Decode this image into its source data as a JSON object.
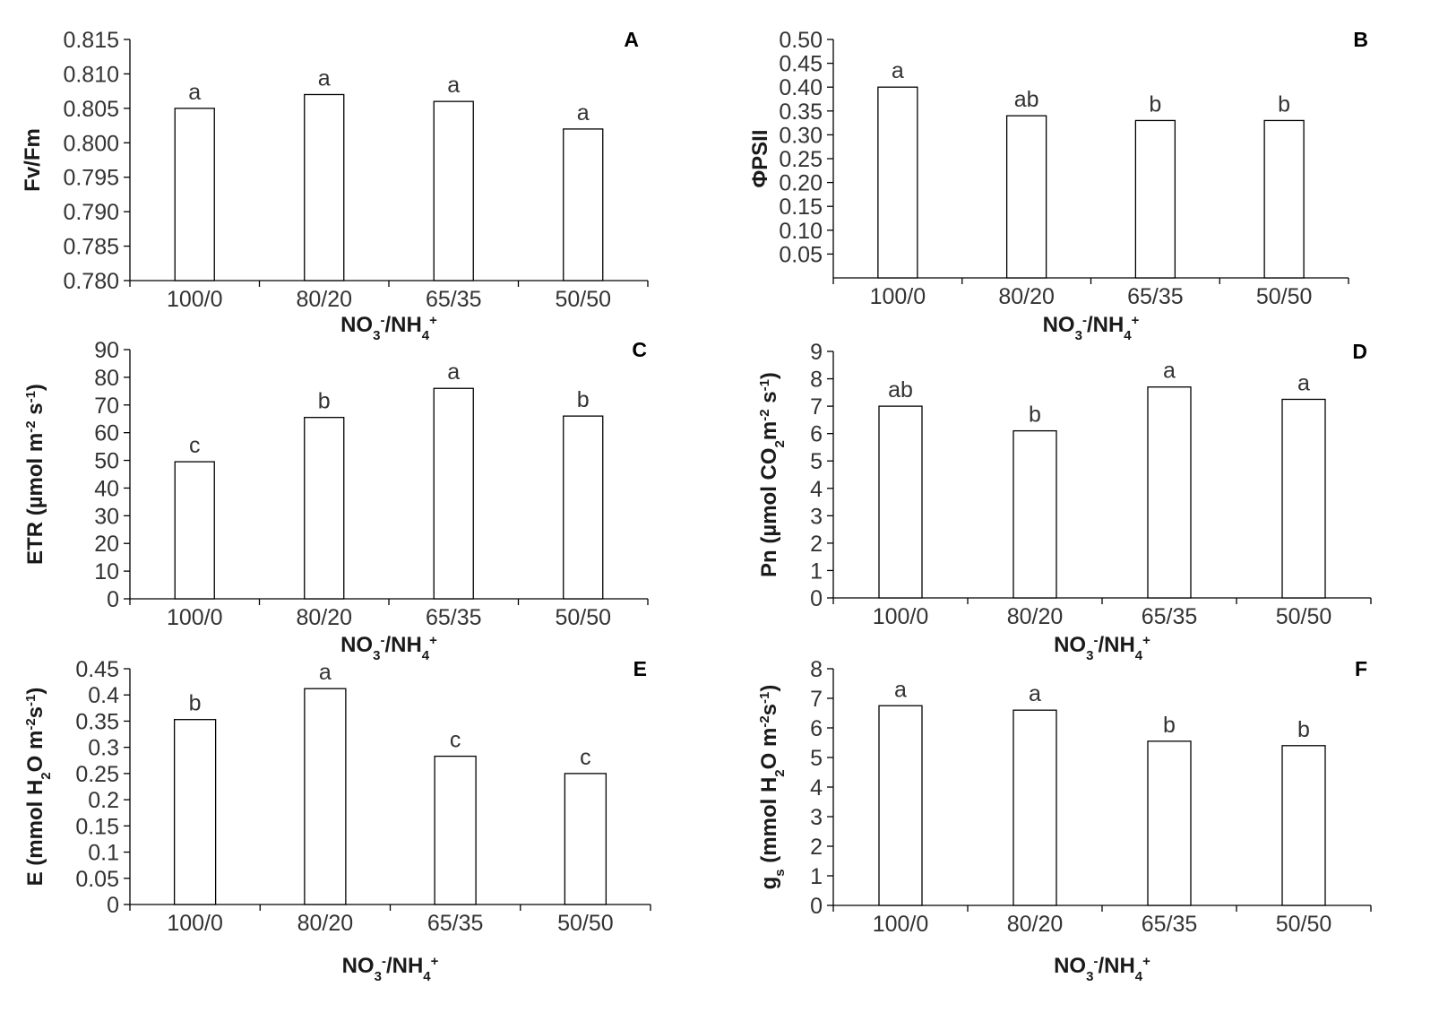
{
  "chart_data": [
    {
      "panel": "A",
      "type": "bar",
      "categories": [
        "100/0",
        "80/20",
        "65/35",
        "50/50"
      ],
      "values": [
        0.805,
        0.807,
        0.806,
        0.802
      ],
      "letters": [
        "a",
        "a",
        "a",
        "a"
      ],
      "ylabel": [
        "Fv/Fm"
      ],
      "xlabel": "NO3-/NH4+",
      "ylim": [
        0.78,
        0.815
      ],
      "yticks": [
        0.78,
        0.785,
        0.79,
        0.795,
        0.8,
        0.805,
        0.81,
        0.815
      ],
      "yticklabels": [
        "0.780",
        "0.785",
        "0.790",
        "0.795",
        "0.800",
        "0.805",
        "0.810",
        "0.815"
      ]
    },
    {
      "panel": "B",
      "type": "bar",
      "categories": [
        "100/0",
        "80/20",
        "65/35",
        "50/50"
      ],
      "values": [
        0.4,
        0.34,
        0.33,
        0.33
      ],
      "letters": [
        "a",
        "ab",
        "b",
        "b"
      ],
      "ylabel": [
        "ΦPSII"
      ],
      "xlabel": "NO3-/NH4+",
      "ylim": [
        0,
        0.5
      ],
      "yticks": [
        0.05,
        0.1,
        0.15,
        0.2,
        0.25,
        0.3,
        0.35,
        0.4,
        0.45,
        0.5
      ],
      "yticklabels": [
        "0.05",
        "0.10",
        "0.15",
        "0.20",
        "0.25",
        "0.30",
        "0.35",
        "0.40",
        "0.45",
        "0.50"
      ]
    },
    {
      "panel": "C",
      "type": "bar",
      "categories": [
        "100/0",
        "80/20",
        "65/35",
        "50/50"
      ],
      "values": [
        49.5,
        65.5,
        76,
        66
      ],
      "letters": [
        "c",
        "b",
        "a",
        "b"
      ],
      "ylabel": [
        "ETR (µmol m",
        "-2",
        " s",
        "-1",
        ")"
      ],
      "xlabel": "NO3-/NH4+",
      "ylim": [
        0,
        90
      ],
      "yticks": [
        0,
        10,
        20,
        30,
        40,
        50,
        60,
        70,
        80,
        90
      ],
      "yticklabels": [
        "0",
        "10",
        "20",
        "30",
        "40",
        "50",
        "60",
        "70",
        "80",
        "90"
      ]
    },
    {
      "panel": "D",
      "type": "bar",
      "categories": [
        "100/0",
        "80/20",
        "65/35",
        "50/50"
      ],
      "values": [
        7.0,
        6.1,
        7.7,
        7.25
      ],
      "letters": [
        "ab",
        "b",
        "a",
        "a"
      ],
      "ylabel": [
        "Pn (µmol CO",
        "2",
        "m",
        "-2",
        " s",
        "-1",
        ")"
      ],
      "xlabel": "NO3-/NH4+",
      "ylim": [
        0,
        9
      ],
      "yticks": [
        0,
        1,
        2,
        3,
        4,
        5,
        6,
        7,
        8,
        9
      ],
      "yticklabels": [
        "0",
        "1",
        "2",
        "3",
        "4",
        "5",
        "6",
        "7",
        "8",
        "9"
      ]
    },
    {
      "panel": "E",
      "type": "bar",
      "categories": [
        "100/0",
        "80/20",
        "65/35",
        "50/50"
      ],
      "values": [
        0.353,
        0.412,
        0.283,
        0.25
      ],
      "letters": [
        "b",
        "a",
        "c",
        "c"
      ],
      "ylabel": [
        "E (mmol H",
        "2",
        "O m",
        "-2",
        "s",
        "-1",
        ")"
      ],
      "xlabel": "NO3-/NH4+",
      "ylim": [
        0,
        0.45
      ],
      "yticks": [
        0,
        0.05,
        0.1,
        0.15,
        0.2,
        0.25,
        0.3,
        0.35,
        0.4,
        0.45
      ],
      "yticklabels": [
        "0",
        "0.05",
        "0.1",
        "0.15",
        "0.2",
        "0.25",
        "0.3",
        "0.35",
        "0.4",
        "0.45"
      ]
    },
    {
      "panel": "F",
      "type": "bar",
      "categories": [
        "100/0",
        "80/20",
        "65/35",
        "50/50"
      ],
      "values": [
        6.75,
        6.6,
        5.55,
        5.4
      ],
      "letters": [
        "a",
        "a",
        "b",
        "b"
      ],
      "ylabel": [
        "g",
        "s",
        " (mmol H",
        "2",
        "O m",
        "-2",
        "s",
        "-1",
        ")"
      ],
      "xlabel": "NO3-/NH4+",
      "ylim": [
        0,
        8
      ],
      "yticks": [
        0,
        1,
        2,
        3,
        4,
        5,
        6,
        7,
        8
      ],
      "yticklabels": [
        "0",
        "1",
        "2",
        "3",
        "4",
        "5",
        "6",
        "7",
        "8"
      ]
    }
  ],
  "colors": {
    "bar_fill": "#ffffff",
    "bar_stroke": "#000000",
    "text": "#333333"
  }
}
